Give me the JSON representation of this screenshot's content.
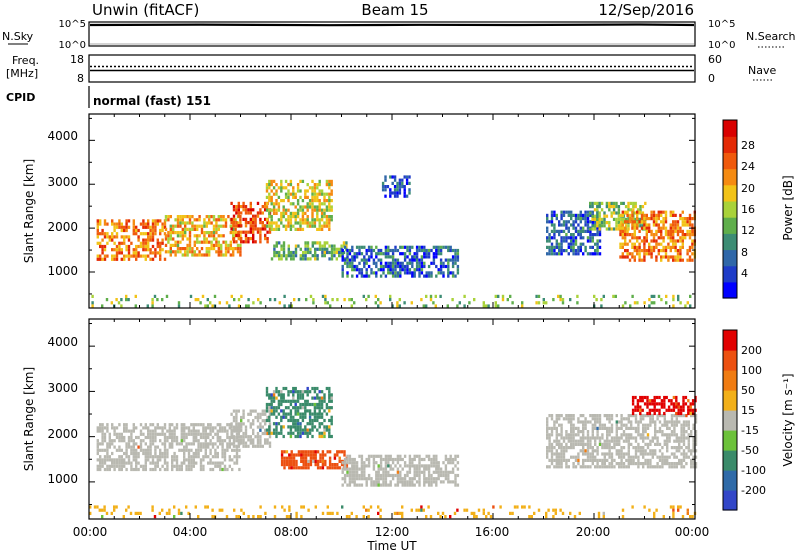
{
  "header": {
    "station": "Unwin (fitACF)",
    "beam": "Beam 15",
    "date": "12/Sep/2016"
  },
  "colors": {
    "power_scale": [
      "#0000ff",
      "#1e3cc8",
      "#2f67a8",
      "#3c8c74",
      "#5fae4b",
      "#a9d23a",
      "#f2c318",
      "#f58b12",
      "#f05a0c",
      "#e42a05",
      "#d90000"
    ],
    "velocity_scale": [
      "#3246c8",
      "#2f6aa8",
      "#3a8b6a",
      "#6cc23a",
      "#b9b9b1",
      "#f2b019",
      "#f07c12",
      "#ec5010",
      "#e10000"
    ],
    "ground_scatter": "#b9b9b1"
  },
  "top_panels": {
    "nsky": {
      "label": "N.Sky",
      "left_ticks": [
        "10^5",
        "10^0"
      ],
      "right_ticks": [
        "10^5",
        "10^0"
      ],
      "right_label": "N.Search"
    },
    "freq": {
      "label_line1": "Freq.",
      "label_line2": "[MHz]",
      "left_ticks": [
        "18",
        "8"
      ],
      "right_ticks": [
        "60",
        "0"
      ],
      "right_label": "Nave"
    },
    "cpid": {
      "label": "CPID",
      "value": "normal (fast) 151"
    }
  },
  "chart_data": [
    {
      "type": "heatmap",
      "name": "power",
      "ylabel": "Slant Range [km]",
      "yticks": [
        "4000",
        "3000",
        "2000",
        "1000"
      ],
      "ylim": [
        180,
        4600
      ],
      "xlim": [
        0,
        24
      ],
      "colorbar_label": "Power [dB]",
      "colorbar_ticks": [
        "28",
        "24",
        "20",
        "16",
        "12",
        "8",
        "4"
      ],
      "regions": [
        {
          "t0": 0.3,
          "t1": 3.0,
          "r0": 1300,
          "r1": 2200,
          "level": 0.72
        },
        {
          "t0": 3.0,
          "t1": 6.0,
          "r0": 1400,
          "r1": 2300,
          "level": 0.62
        },
        {
          "t0": 5.6,
          "t1": 7.2,
          "r0": 1700,
          "r1": 2600,
          "level": 0.85
        },
        {
          "t0": 7.0,
          "t1": 9.6,
          "r0": 2000,
          "r1": 3100,
          "level": 0.55
        },
        {
          "t0": 7.2,
          "t1": 10.2,
          "r0": 1300,
          "r1": 1700,
          "level": 0.4
        },
        {
          "t0": 10.0,
          "t1": 14.6,
          "r0": 900,
          "r1": 1600,
          "level": 0.22
        },
        {
          "t0": 11.6,
          "t1": 12.7,
          "r0": 2700,
          "r1": 3200,
          "level": 0.18
        },
        {
          "t0": 18.1,
          "t1": 20.2,
          "r0": 1400,
          "r1": 2400,
          "level": 0.2
        },
        {
          "t0": 19.8,
          "t1": 22.0,
          "r0": 2000,
          "r1": 2600,
          "level": 0.45
        },
        {
          "t0": 21.0,
          "t1": 24.0,
          "r0": 1300,
          "r1": 2400,
          "level": 0.72
        },
        {
          "t0": 0.0,
          "t1": 24.0,
          "r0": 200,
          "r1": 480,
          "level": 0.45
        }
      ]
    },
    {
      "type": "heatmap",
      "name": "velocity",
      "ylabel": "Slant Range [km]",
      "yticks": [
        "4000",
        "3000",
        "2000",
        "1000"
      ],
      "ylim": [
        180,
        4600
      ],
      "xlim": [
        0,
        24
      ],
      "xlabel": "Time UT",
      "xticks": [
        "00:00",
        "04:00",
        "08:00",
        "12:00",
        "16:00",
        "20:00",
        "00:00"
      ],
      "colorbar_label": "Velocity [m s⁻¹]",
      "colorbar_ticks": [
        "200",
        "100",
        "50",
        "15",
        "-15",
        "-50",
        "-100",
        "-200"
      ],
      "regions": [
        {
          "t0": 0.3,
          "t1": 6.0,
          "r0": 1300,
          "r1": 2300,
          "level": 0.5
        },
        {
          "t0": 5.6,
          "t1": 7.2,
          "r0": 1800,
          "r1": 2600,
          "level": 0.5
        },
        {
          "t0": 7.0,
          "t1": 9.6,
          "r0": 2000,
          "r1": 3100,
          "level": 0.3
        },
        {
          "t0": 7.6,
          "t1": 10.2,
          "r0": 1300,
          "r1": 1700,
          "level": 0.82
        },
        {
          "t0": 10.0,
          "t1": 14.6,
          "r0": 900,
          "r1": 1600,
          "level": 0.5
        },
        {
          "t0": 18.1,
          "t1": 24.0,
          "r0": 1300,
          "r1": 2500,
          "level": 0.5
        },
        {
          "t0": 21.5,
          "t1": 24.0,
          "r0": 2500,
          "r1": 2900,
          "level": 0.95
        },
        {
          "t0": 0.0,
          "t1": 24.0,
          "r0": 200,
          "r1": 480,
          "level": 0.65
        }
      ]
    }
  ]
}
